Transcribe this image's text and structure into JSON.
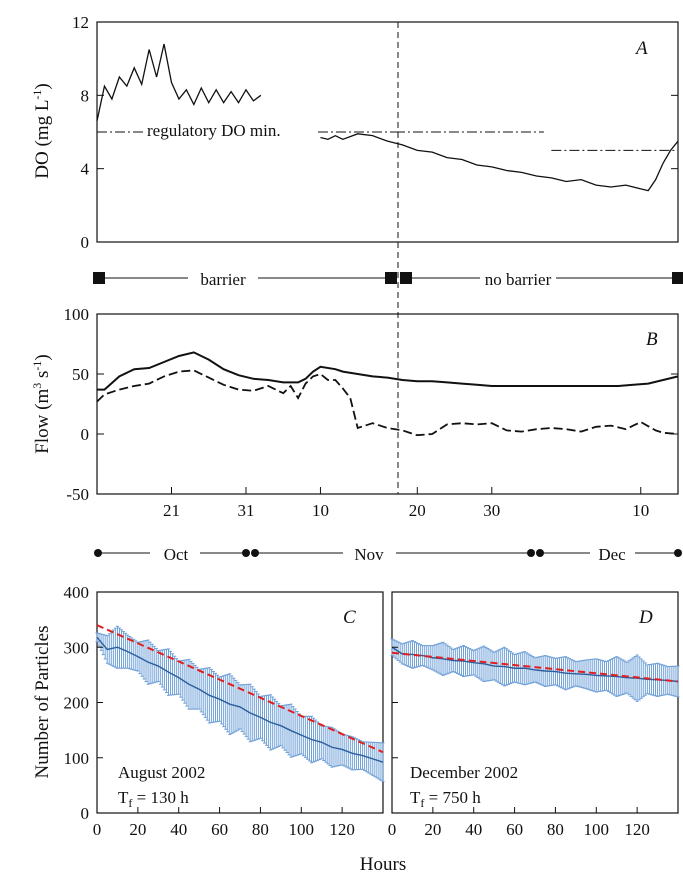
{
  "chart_data": [
    {
      "type": "line",
      "panel": "A",
      "ylabel": "DO (mg L-1)",
      "ylabel_main": "DO (mg L",
      "ylabel_sup": "-1",
      "ylabel_close": ")",
      "ylim": [
        0,
        12
      ],
      "yticks": [
        0,
        4,
        8,
        12
      ],
      "x_range_days": [
        0,
        78
      ],
      "grid": false,
      "annotation": "regulatory DO min.",
      "regulatory_min_segments": [
        {
          "x": [
            0,
            40
          ],
          "y": 6
        },
        {
          "x": [
            40,
            60
          ],
          "y": 6
        },
        {
          "x": [
            61,
            78
          ],
          "y": 5
        }
      ],
      "series": [
        {
          "style": "solid",
          "x": [
            0,
            1,
            2,
            3,
            4,
            5,
            6,
            7,
            8,
            9,
            10,
            11,
            12,
            13,
            14,
            15,
            16,
            17,
            18,
            19,
            20,
            21,
            22
          ],
          "y": [
            6.6,
            8.5,
            7.8,
            9.0,
            8.5,
            9.5,
            8.6,
            10.5,
            9.0,
            10.8,
            8.7,
            7.8,
            8.3,
            7.5,
            8.4,
            7.6,
            8.3,
            7.6,
            8.2,
            7.6,
            8.3,
            7.7,
            8.0
          ]
        },
        {
          "style": "solid",
          "x": [
            30,
            31,
            32,
            33,
            35,
            37,
            39,
            41,
            43,
            45,
            47,
            49,
            51,
            53,
            55,
            57,
            59,
            61,
            63,
            65,
            67,
            69,
            71,
            73,
            74,
            75,
            76,
            77,
            78
          ],
          "y": [
            5.7,
            5.6,
            5.8,
            5.6,
            5.9,
            5.8,
            5.5,
            5.3,
            5.0,
            4.9,
            4.6,
            4.5,
            4.2,
            4.1,
            3.9,
            3.8,
            3.6,
            3.5,
            3.3,
            3.4,
            3.1,
            3.0,
            3.1,
            2.9,
            2.8,
            3.4,
            4.3,
            5.0,
            5.5
          ]
        }
      ],
      "event_line_day": 33
    },
    {
      "type": "line",
      "panel": "B",
      "ylabel": "Flow (m3 s-1)",
      "ylabel_main": "Flow (m",
      "ylabel_sup1": "3",
      "ylabel_mid": " s",
      "ylabel_sup2": "-1",
      "ylabel_close": ")",
      "ylim": [
        -50,
        100
      ],
      "yticks": [
        -50,
        0,
        50,
        100
      ],
      "xticks_days": [
        10,
        20,
        30,
        40,
        50,
        60,
        70
      ],
      "xtick_labels": [
        "21",
        "31",
        "10",
        "20",
        "30",
        "10"
      ],
      "xtick_label_days": [
        10,
        20,
        30,
        43,
        53,
        73
      ],
      "x_range_days": [
        0,
        78
      ],
      "grid": false,
      "series": [
        {
          "style": "solid",
          "x": [
            0,
            1,
            3,
            5,
            7,
            9,
            11,
            13,
            15,
            17,
            19,
            21,
            23,
            25,
            27,
            28,
            29,
            30,
            32,
            33,
            35,
            37,
            39,
            41,
            43,
            45,
            47,
            49,
            51,
            53,
            55,
            57,
            59,
            60,
            62,
            64,
            66,
            68,
            70,
            72,
            74,
            76,
            78
          ],
          "y": [
            37,
            37,
            48,
            54,
            55,
            60,
            65,
            68,
            62,
            54,
            49,
            46,
            45,
            43,
            43,
            46,
            52,
            56,
            54,
            52,
            50,
            48,
            47,
            45,
            44,
            44,
            43,
            42,
            41,
            40,
            40,
            40,
            40,
            40,
            40,
            40,
            40,
            40,
            40,
            41,
            42,
            45,
            48
          ]
        },
        {
          "style": "dashed",
          "x": [
            0,
            1,
            3,
            5,
            7,
            9,
            11,
            13,
            15,
            17,
            19,
            21,
            23,
            25,
            26,
            27,
            28,
            29,
            30,
            31,
            32,
            33,
            34,
            35,
            37,
            39,
            41,
            43,
            45,
            47,
            49,
            51,
            53,
            55,
            57,
            59,
            61,
            63,
            65,
            67,
            69,
            71,
            73,
            75,
            76,
            78
          ],
          "y": [
            27,
            33,
            37,
            40,
            42,
            48,
            52,
            53,
            47,
            41,
            37,
            36,
            40,
            34,
            40,
            30,
            42,
            48,
            50,
            45,
            45,
            38,
            30,
            5,
            9,
            5,
            3,
            -1,
            0,
            8,
            9,
            8,
            9,
            3,
            2,
            4,
            5,
            4,
            2,
            6,
            7,
            4,
            10,
            3,
            1,
            0
          ]
        }
      ],
      "event_line_day": 33
    },
    {
      "type": "line",
      "panel": "C",
      "ylabel": "Number of Particles",
      "xlabel": "Hours",
      "ylim": [
        0,
        400
      ],
      "yticks": [
        0,
        100,
        200,
        300,
        400
      ],
      "xlim": [
        0,
        140
      ],
      "xticks": [
        0,
        20,
        40,
        60,
        80,
        100,
        120
      ],
      "grid": false,
      "annotation_title": "August 2002",
      "annotation_tf_prefix": "T",
      "annotation_tf_sub": "f",
      "annotation_tf_value": " = 130 h",
      "mean_series_x": [
        0,
        5,
        10,
        15,
        20,
        25,
        30,
        35,
        40,
        45,
        50,
        55,
        60,
        65,
        70,
        75,
        80,
        85,
        90,
        95,
        100,
        105,
        110,
        115,
        120,
        125,
        130,
        135,
        140
      ],
      "mean_series_y": [
        318,
        296,
        300,
        292,
        283,
        273,
        266,
        255,
        245,
        233,
        224,
        213,
        206,
        197,
        192,
        181,
        173,
        164,
        158,
        149,
        141,
        133,
        128,
        119,
        115,
        108,
        104,
        98,
        92
      ],
      "error_half_width_y": [
        8,
        25,
        38,
        30,
        26,
        40,
        28,
        42,
        30,
        45,
        36,
        50,
        40,
        55,
        40,
        52,
        38,
        50,
        36,
        48,
        34,
        42,
        30,
        36,
        28,
        30,
        25,
        30,
        35
      ],
      "fit_series_x": [
        0,
        140
      ],
      "fit_series_y": [
        340,
        110
      ],
      "mean_color": "#5b9bd5",
      "error_color": "#6fa0d8",
      "fit_color": "#e02020"
    },
    {
      "type": "line",
      "panel": "D",
      "xlabel": "Hours",
      "ylim": [
        0,
        400
      ],
      "xlim": [
        0,
        140
      ],
      "xticks": [
        0,
        20,
        40,
        60,
        80,
        100,
        120
      ],
      "grid": false,
      "annotation_title": "December 2002",
      "annotation_tf_prefix": "T",
      "annotation_tf_sub": "f",
      "annotation_tf_value": " = 750 h",
      "mean_series_x": [
        0,
        5,
        10,
        15,
        20,
        25,
        30,
        35,
        40,
        45,
        50,
        55,
        60,
        65,
        70,
        75,
        80,
        85,
        90,
        95,
        100,
        105,
        110,
        115,
        120,
        125,
        130,
        135,
        140
      ],
      "mean_series_y": [
        300,
        288,
        287,
        285,
        281,
        279,
        276,
        275,
        272,
        270,
        266,
        265,
        262,
        262,
        259,
        257,
        256,
        253,
        252,
        251,
        249,
        248,
        247,
        245,
        244,
        242,
        241,
        240,
        238
      ],
      "error_half_width_y": [
        15,
        18,
        25,
        18,
        22,
        30,
        20,
        28,
        22,
        32,
        25,
        35,
        25,
        30,
        22,
        28,
        24,
        30,
        22,
        26,
        30,
        26,
        36,
        28,
        42,
        26,
        30,
        25,
        28
      ],
      "fit_series_x": [
        0,
        140
      ],
      "fit_series_y": [
        290,
        238
      ],
      "mean_color": "#5b9bd5",
      "error_color": "#6fa0d8",
      "fit_color": "#e02020"
    }
  ],
  "barrier_bar": {
    "left_label": "barrier",
    "right_label": "no barrier"
  },
  "month_bar": {
    "labels": [
      "Oct",
      "Nov",
      "Dec"
    ]
  },
  "shared_xlabel": "Hours",
  "colors": {
    "ink": "#111111",
    "blue": "#5b9bd5",
    "red": "#e02020"
  }
}
